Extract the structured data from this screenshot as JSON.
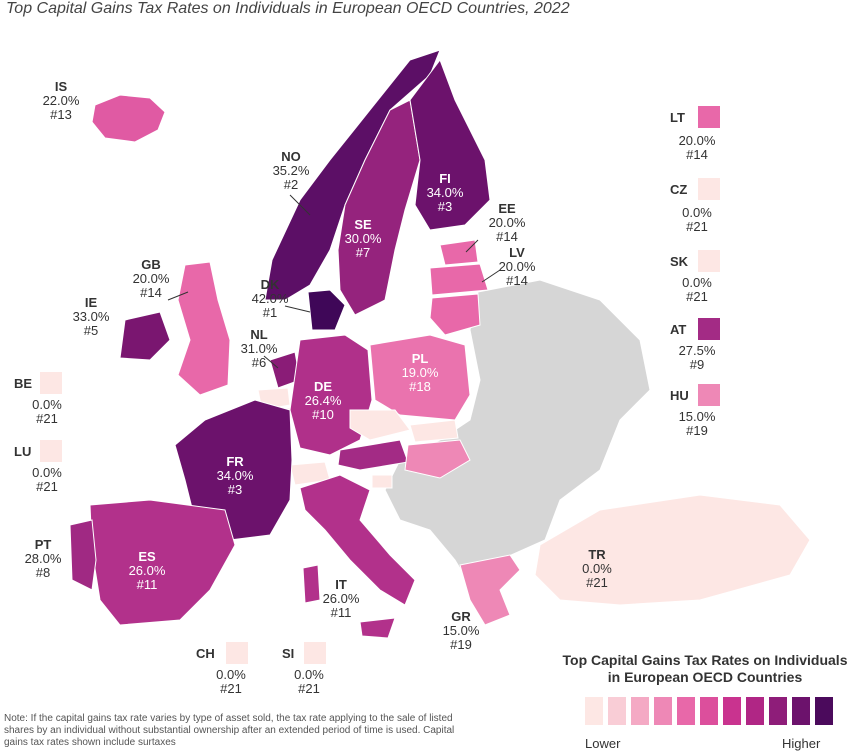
{
  "title": "Top Capital Gains Tax Rates on Individuals in European OECD Countries, 2022",
  "legend": {
    "title_line1": "Top Capital Gains Tax Rates on Individuals",
    "title_line2": "in European OECD Countries",
    "low_label": "Lower",
    "high_label": "Higher",
    "colors": [
      "#fde7e4",
      "#f9cdd6",
      "#f4a9c4",
      "#ee88b6",
      "#e868a9",
      "#dc4f9c",
      "#c9338f",
      "#b02685",
      "#8e1d79",
      "#6c126c",
      "#4b0a5c"
    ]
  },
  "note": "Note: If the capital gains tax rate varies by type of asset sold, the tax rate applying to the sale of listed shares by an individual without substantial ownership after an extended period of time is used. Capital gains tax rates shown include surtaxes",
  "countries": {
    "IS": {
      "code": "IS",
      "rate": "22.0%",
      "rank": "#13",
      "color": "#e05aa3"
    },
    "NO": {
      "code": "NO",
      "rate": "35.2%",
      "rank": "#2",
      "color": "#5c0f66"
    },
    "FI": {
      "code": "FI",
      "rate": "34.0%",
      "rank": "#3",
      "color": "#6c126c"
    },
    "SE": {
      "code": "SE",
      "rate": "30.0%",
      "rank": "#7",
      "color": "#95237d"
    },
    "EE": {
      "code": "EE",
      "rate": "20.0%",
      "rank": "#14",
      "color": "#e868a9"
    },
    "LV": {
      "code": "LV",
      "rate": "20.0%",
      "rank": "#14",
      "color": "#e868a9"
    },
    "LT": {
      "code": "LT",
      "rate": "20.0%",
      "rank": "#14",
      "color": "#e868a9"
    },
    "GB": {
      "code": "GB",
      "rate": "20.0%",
      "rank": "#14",
      "color": "#e868a9"
    },
    "IE": {
      "code": "IE",
      "rate": "33.0%",
      "rank": "#5",
      "color": "#7a1670"
    },
    "DK": {
      "code": "DK",
      "rate": "42.0%",
      "rank": "#1",
      "color": "#3f0758"
    },
    "NL": {
      "code": "NL",
      "rate": "31.0%",
      "rank": "#6",
      "color": "#8a1c77"
    },
    "DE": {
      "code": "DE",
      "rate": "26.4%",
      "rank": "#10",
      "color": "#b0308a"
    },
    "PL": {
      "code": "PL",
      "rate": "19.0%",
      "rank": "#18",
      "color": "#ea73ae"
    },
    "FR": {
      "code": "FR",
      "rate": "34.0%",
      "rank": "#3",
      "color": "#6c126c"
    },
    "ES": {
      "code": "ES",
      "rate": "26.0%",
      "rank": "#11",
      "color": "#b2318b"
    },
    "PT": {
      "code": "PT",
      "rate": "28.0%",
      "rank": "#8",
      "color": "#a02983"
    },
    "IT": {
      "code": "IT",
      "rate": "26.0%",
      "rank": "#11",
      "color": "#b2318b"
    },
    "GR": {
      "code": "GR",
      "rate": "15.0%",
      "rank": "#19",
      "color": "#ee88b6"
    },
    "TR": {
      "code": "TR",
      "rate": "0.0%",
      "rank": "#21",
      "color": "#fde7e4"
    },
    "CZ": {
      "code": "CZ",
      "rate": "0.0%",
      "rank": "#21",
      "color": "#fde7e4"
    },
    "SK": {
      "code": "SK",
      "rate": "0.0%",
      "rank": "#21",
      "color": "#fde7e4"
    },
    "AT": {
      "code": "AT",
      "rate": "27.5%",
      "rank": "#9",
      "color": "#a32b85"
    },
    "HU": {
      "code": "HU",
      "rate": "15.0%",
      "rank": "#19",
      "color": "#ee88b6"
    },
    "BE": {
      "code": "BE",
      "rate": "0.0%",
      "rank": "#21",
      "color": "#fde7e4"
    },
    "LU": {
      "code": "LU",
      "rate": "0.0%",
      "rank": "#21",
      "color": "#fde7e4"
    },
    "CH": {
      "code": "CH",
      "rate": "0.0%",
      "rank": "#21",
      "color": "#fde7e4"
    },
    "SI": {
      "code": "SI",
      "rate": "0.0%",
      "rank": "#21",
      "color": "#fde7e4"
    }
  },
  "non_oecd_color": "#d6d6d6"
}
